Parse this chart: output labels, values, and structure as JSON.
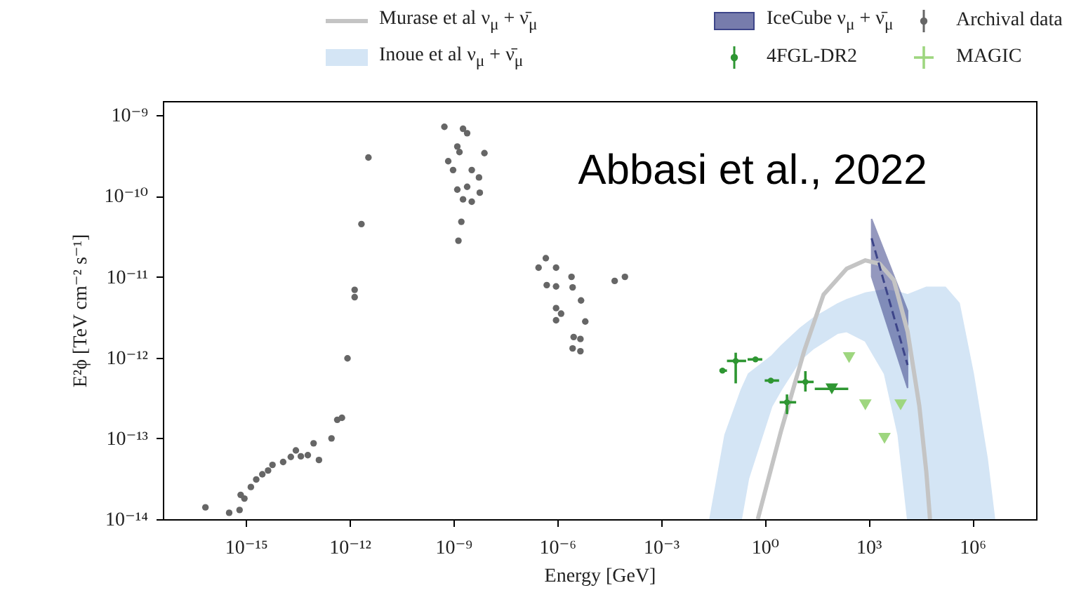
{
  "chart_data": {
    "type": "line",
    "log": "xy",
    "grid": false,
    "legend": "top",
    "xlabel": "Energy [GeV]",
    "ylabel": "E²ϕ [TeV cm⁻² s⁻¹]",
    "xlim": [
      4e-18,
      70000000.0
    ],
    "ylim": [
      1e-14,
      1.5e-09
    ],
    "xticks": [
      {
        "value": 1e-15,
        "label": "10⁻¹⁵"
      },
      {
        "value": 1e-12,
        "label": "10⁻¹²"
      },
      {
        "value": 1e-09,
        "label": "10⁻⁹"
      },
      {
        "value": 1e-06,
        "label": "10⁻⁶"
      },
      {
        "value": 0.001,
        "label": "10⁻³"
      },
      {
        "value": 1,
        "label": "10⁰"
      },
      {
        "value": 1000,
        "label": "10³"
      },
      {
        "value": 1000000,
        "label": "10⁶"
      }
    ],
    "yticks": [
      {
        "value": 1e-14,
        "label": "10⁻¹⁴"
      },
      {
        "value": 1e-13,
        "label": "10⁻¹³"
      },
      {
        "value": 1e-12,
        "label": "10⁻¹²"
      },
      {
        "value": 1e-11,
        "label": "10⁻¹¹"
      },
      {
        "value": 1e-10,
        "label": "10⁻¹⁰"
      },
      {
        "value": 1e-09,
        "label": "10⁻⁹"
      }
    ],
    "annotations": [
      "Abbasi et al., 2022"
    ],
    "series": [
      {
        "name": "Murase et al ν$_{μ}$ + ν̄$_{μ}$",
        "color": "#c4c4c4",
        "x": [
          0.63,
          3,
          14,
          50,
          234,
          813,
          2090,
          5400,
          13500,
          29500,
          47000,
          60000
        ],
        "values": [
          1e-14,
          1.26e-13,
          1.23e-12,
          6e-12,
          1.26e-11,
          1.6e-11,
          1.45e-11,
          9.1e-12,
          2.1e-12,
          2.5e-13,
          3.8e-14,
          1e-14
        ]
      },
      {
        "name": "Inoue et al ν$_{μ}$ + ν̄$_{μ}$",
        "color": "#d4e5f5",
        "x": [
          0.026,
          0.071,
          0.21,
          0.34,
          1.6,
          3,
          10.5,
          26,
          126,
          234,
          813,
          2900,
          7200,
          13500,
          47000,
          166000,
          417000,
          1070000,
          2700000,
          4400000
        ],
        "values": [
          null,
          null,
          null,
          null,
          null,
          null,
          null,
          null,
          null,
          null,
          null,
          null,
          null,
          null,
          null,
          null,
          null,
          null,
          null,
          null
        ],
        "lower": [
          1e-14,
          1e-14,
          1e-14,
          3.2e-14,
          2.5e-13,
          4e-13,
          9.3e-13,
          1.3e-12,
          2e-12,
          2.1e-12,
          1.6e-12,
          6.3e-13,
          1.1e-13,
          1e-14,
          1e-14,
          1e-14,
          1e-14,
          1e-14,
          1e-14,
          1e-14
        ],
        "upper": [
          1e-14,
          1.1e-13,
          4e-13,
          6.3e-13,
          1.05e-12,
          1.4e-12,
          2.3e-12,
          3.1e-12,
          4.6e-12,
          5.2e-12,
          6.3e-12,
          6.9e-12,
          6.5e-12,
          6e-12,
          7.4e-12,
          7.4e-12,
          4.7e-12,
          6.3e-13,
          5.6e-14,
          1e-14
        ]
      },
      {
        "name": "IceCube ν$_{μ}$ + ν̄$_{μ}$",
        "type": "line",
        "line_style": "dashed",
        "color": "#3d4589",
        "x": [
          1230,
          13500
        ],
        "values": [
          3e-11,
          8.1e-13
        ],
        "lower": [
          1e-11,
          4.2e-13
        ],
        "upper": [
          5.2e-11,
          3.8e-12
        ]
      },
      {
        "name": "4FGL-DR2",
        "type": "scatter",
        "marker": "circle",
        "color": "#2e9632",
        "x": [
          0.06,
          0.145,
          0.54,
          1.5,
          4.4,
          15
        ],
        "values": [
          6.9e-13,
          9.1e-13,
          9.5e-13,
          5.2e-13,
          2.8e-13,
          5e-13
        ],
        "errors": [
          null,
          [
            4.8e-13,
            1.15e-12
          ],
          null,
          null,
          [
            2e-13,
            3.5e-13
          ],
          [
            3.8e-13,
            6.8e-13
          ]
        ],
        "xerrors": [
          [
            0.049,
            0.081
          ],
          [
            0.081,
            0.29
          ],
          [
            0.32,
            0.85
          ],
          [
            1,
            2.6
          ],
          [
            2.7,
            8.1
          ],
          [
            8.9,
            26
          ]
        ]
      },
      {
        "name": "Archival data",
        "type": "scatter",
        "marker": "circle",
        "color": "#666666",
        "x": [
          6.8e-17,
          3.3e-16,
          6.6e-16,
          7.1e-16,
          9.1e-16,
          1.4e-15,
          2e-15,
          3e-15,
          4.4e-15,
          5.9e-15,
          1.2e-14,
          2e-14,
          2.8e-14,
          3.9e-14,
          6.2e-14,
          9.1e-14,
          1.3e-13,
          3e-13,
          4.4e-13,
          6e-13,
          8.7e-13,
          1.4e-12,
          1.4e-12,
          2.2e-12,
          3.5e-12,
          5.5e-10,
          1.9e-09,
          2.5e-09,
          1.3e-09,
          1.5e-09,
          7.9e-09,
          7.1e-10,
          9.8e-10,
          3.4e-09,
          5.5e-09,
          1.3e-09,
          2.5e-09,
          5.8e-09,
          1.9e-09,
          3.4e-09,
          1.7e-09,
          1.4e-09,
          4.7e-07,
          2.9e-07,
          9.3e-07,
          2.6e-06,
          5e-07,
          9.3e-07,
          2.8e-06,
          4.9e-06,
          9.3e-07,
          1.3e-06,
          9.3e-07,
          6.5e-06,
          3e-06,
          4.7e-06,
          2.8e-06,
          4.7e-06,
          4.6e-05,
          9.1e-05
        ],
        "values": [
          1.4e-14,
          1.2e-14,
          1.3e-14,
          2e-14,
          1.8e-14,
          2.5e-14,
          3.1e-14,
          3.6e-14,
          4e-14,
          4.7e-14,
          5.1e-14,
          5.9e-14,
          7.1e-14,
          6e-14,
          6.2e-14,
          8.7e-14,
          5.4e-14,
          1e-13,
          1.7e-13,
          1.8e-13,
          9.8e-13,
          6.9e-12,
          5.6e-12,
          4.5e-11,
          3e-10,
          7.2e-10,
          6.8e-10,
          6e-10,
          4.1e-10,
          3.5e-10,
          3.4e-10,
          2.7e-10,
          2.1e-10,
          2.1e-10,
          1.7e-10,
          1.2e-10,
          1.3e-10,
          1.1e-10,
          9.1e-11,
          8.5e-11,
          4.8e-11,
          2.8e-11,
          1.7e-11,
          1.3e-11,
          1.3e-11,
          1e-11,
          7.9e-12,
          7.6e-12,
          7.4e-12,
          5.1e-12,
          4.1e-12,
          3.5e-12,
          2.9e-12,
          2.8e-12,
          1.8e-12,
          1.7e-12,
          1.3e-12,
          1.2e-12,
          8.9e-12,
          1e-11
        ]
      },
      {
        "name": "MAGIC",
        "type": "scatter",
        "marker": "triangle",
        "color": "#9ed67f",
        "x": [
          275,
          810,
          8500,
          2900
        ],
        "values": [
          1e-12,
          2.6e-13,
          2.6e-13,
          1e-13
        ]
      },
      {
        "type": "scatter",
        "marker": "triangle",
        "color": "#2e9632",
        "x": [
          87
        ],
        "values": [
          4.1e-13
        ],
        "xerrors": [
          [
            28,
            260
          ]
        ]
      }
    ]
  }
}
